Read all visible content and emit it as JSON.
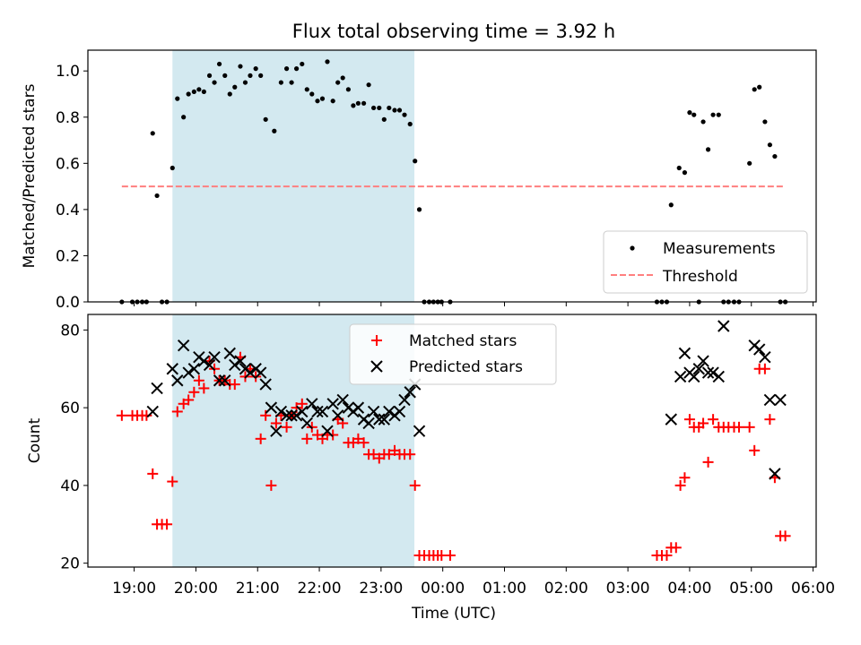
{
  "title": "Flux total observing time = 3.92 h",
  "chart_data": [
    {
      "type": "scatter",
      "ylabel": "Matched/Predicted stars",
      "xlabel": "",
      "xlim_hours": [
        18.25,
        30.05
      ],
      "ylim": [
        0,
        1.09
      ],
      "yticks": [
        0.0,
        0.2,
        0.4,
        0.6,
        0.8,
        1.0
      ],
      "ytick_labels": [
        "0.0",
        "0.2",
        "0.4",
        "0.6",
        "0.8",
        "1.0"
      ],
      "shaded_interval_hours": [
        19.62,
        23.54
      ],
      "shade_color": "#d3e9f0",
      "threshold": {
        "y": 0.5,
        "x_range_hours": [
          18.8,
          29.55
        ],
        "label": "Threshold",
        "color": "#ff7f7f"
      },
      "legend": {
        "placement": "lower-right",
        "entries": [
          "Measurements",
          "Threshold"
        ]
      },
      "series": [
        {
          "name": "Measurements",
          "marker": "dot",
          "color": "#000000",
          "x": [
            18.8,
            18.97,
            19.05,
            19.13,
            19.2,
            19.3,
            19.37,
            19.45,
            19.53,
            19.62,
            19.7,
            19.8,
            19.88,
            19.97,
            20.05,
            20.13,
            20.22,
            20.3,
            20.38,
            20.47,
            20.55,
            20.63,
            20.72,
            20.8,
            20.88,
            20.97,
            21.05,
            21.13,
            21.27,
            21.38,
            21.47,
            21.55,
            21.63,
            21.72,
            21.8,
            21.88,
            21.97,
            22.05,
            22.13,
            22.22,
            22.3,
            22.38,
            22.47,
            22.55,
            22.63,
            22.72,
            22.8,
            22.88,
            22.97,
            23.05,
            23.13,
            23.22,
            23.3,
            23.38,
            23.47,
            23.55,
            23.62,
            23.7,
            23.78,
            23.85,
            23.92,
            23.98,
            24.12,
            27.47,
            27.55,
            27.63,
            27.7,
            27.83,
            27.92,
            28.0,
            28.07,
            28.15,
            28.22,
            28.3,
            28.38,
            28.47,
            28.55,
            28.63,
            28.72,
            28.8,
            28.97,
            29.05,
            29.13,
            29.22,
            29.3,
            29.38,
            29.47,
            29.55
          ],
          "y": [
            0,
            0,
            0,
            0,
            0,
            0.73,
            0.46,
            0,
            0,
            0.58,
            0.88,
            0.8,
            0.9,
            0.91,
            0.92,
            0.91,
            0.98,
            0.95,
            1.03,
            0.98,
            0.9,
            0.93,
            1.02,
            0.95,
            0.98,
            1.01,
            0.98,
            0.79,
            0.74,
            0.95,
            1.01,
            0.95,
            1.01,
            1.03,
            0.92,
            0.9,
            0.87,
            0.88,
            1.04,
            0.87,
            0.95,
            0.97,
            0.92,
            0.85,
            0.86,
            0.86,
            0.94,
            0.84,
            0.84,
            0.79,
            0.84,
            0.83,
            0.83,
            0.81,
            0.77,
            0.61,
            0.4,
            0,
            0,
            0,
            0,
            0,
            0,
            0,
            0,
            0,
            0.42,
            0.58,
            0.56,
            0.82,
            0.81,
            0,
            0.78,
            0.66,
            0.81,
            0.81,
            0,
            0,
            0,
            0,
            0.6,
            0.92,
            0.93,
            0.78,
            0.68,
            0.63,
            0,
            0
          ]
        }
      ]
    },
    {
      "type": "scatter",
      "ylabel": "Count",
      "xlabel": "Time (UTC)",
      "xlim_hours": [
        18.25,
        30.05
      ],
      "ylim": [
        19,
        84
      ],
      "yticks": [
        20,
        40,
        60,
        80
      ],
      "ytick_labels": [
        "20",
        "40",
        "60",
        "80"
      ],
      "xticks_hours": [
        19,
        20,
        21,
        22,
        23,
        24,
        25,
        26,
        27,
        28,
        29,
        30
      ],
      "xtick_labels": [
        "19:00",
        "20:00",
        "21:00",
        "22:00",
        "23:00",
        "00:00",
        "01:00",
        "02:00",
        "03:00",
        "04:00",
        "05:00",
        "06:00"
      ],
      "shaded_interval_hours": [
        19.62,
        23.54
      ],
      "shade_color": "#d3e9f0",
      "legend": {
        "placement": "top-center",
        "entries": [
          "Matched stars",
          "Predicted stars"
        ]
      },
      "series": [
        {
          "name": "Matched stars",
          "marker": "plus",
          "color": "#ff0000",
          "x": [
            18.8,
            18.97,
            19.05,
            19.13,
            19.2,
            19.3,
            19.37,
            19.45,
            19.53,
            19.62,
            19.7,
            19.8,
            19.88,
            19.97,
            20.05,
            20.13,
            20.22,
            20.3,
            20.38,
            20.47,
            20.55,
            20.63,
            20.72,
            20.8,
            20.88,
            20.97,
            21.05,
            21.13,
            21.22,
            21.3,
            21.38,
            21.47,
            21.55,
            21.63,
            21.72,
            21.8,
            21.88,
            21.97,
            22.05,
            22.13,
            22.22,
            22.3,
            22.38,
            22.47,
            22.55,
            22.63,
            22.72,
            22.8,
            22.88,
            22.97,
            23.05,
            23.13,
            23.22,
            23.3,
            23.38,
            23.47,
            23.55,
            23.62,
            23.7,
            23.78,
            23.85,
            23.92,
            23.98,
            24.12,
            27.47,
            27.55,
            27.63,
            27.7,
            27.78,
            27.85,
            27.92,
            28.0,
            28.07,
            28.15,
            28.22,
            28.3,
            28.38,
            28.47,
            28.55,
            28.63,
            28.72,
            28.8,
            28.97,
            29.05,
            29.13,
            29.22,
            29.3,
            29.38,
            29.47,
            29.55
          ],
          "y": [
            58,
            58,
            58,
            58,
            58,
            43,
            30,
            30,
            30,
            41,
            59,
            61,
            62,
            64,
            67,
            65,
            72,
            70,
            67,
            67,
            66,
            66,
            73,
            68,
            70,
            68,
            52,
            58,
            40,
            56,
            58,
            55,
            58,
            60,
            61,
            52,
            55,
            53,
            52,
            53,
            53,
            57,
            56,
            51,
            51,
            52,
            51,
            48,
            48,
            47,
            48,
            48,
            49,
            48,
            48,
            48,
            40,
            22,
            22,
            22,
            22,
            22,
            22,
            22,
            22,
            22,
            22,
            24,
            24,
            40,
            42,
            57,
            55,
            55,
            56,
            46,
            57,
            55,
            55,
            55,
            55,
            55,
            55,
            49,
            70,
            70,
            57,
            42,
            27,
            27
          ]
        },
        {
          "name": "Predicted stars",
          "marker": "x",
          "color": "#000000",
          "x": [
            19.3,
            19.37,
            19.62,
            19.7,
            19.8,
            19.88,
            19.97,
            20.05,
            20.13,
            20.22,
            20.3,
            20.38,
            20.47,
            20.55,
            20.63,
            20.72,
            20.8,
            20.88,
            20.97,
            21.05,
            21.13,
            21.22,
            21.3,
            21.38,
            21.47,
            21.55,
            21.63,
            21.72,
            21.8,
            21.88,
            21.97,
            22.05,
            22.13,
            22.22,
            22.3,
            22.38,
            22.47,
            22.55,
            22.63,
            22.72,
            22.8,
            22.88,
            22.97,
            23.05,
            23.13,
            23.22,
            23.3,
            23.38,
            23.47,
            23.55,
            23.62,
            27.7,
            27.85,
            27.92,
            28.0,
            28.07,
            28.15,
            28.22,
            28.3,
            28.38,
            28.47,
            28.55,
            29.05,
            29.13,
            29.22,
            29.3,
            29.38,
            29.47
          ],
          "y": [
            59,
            65,
            70,
            67,
            76,
            69,
            70,
            73,
            72,
            71,
            73,
            67,
            67,
            74,
            71,
            72,
            70,
            69,
            70,
            69,
            66,
            60,
            54,
            59,
            58,
            58,
            58,
            59,
            56,
            61,
            59,
            59,
            54,
            61,
            58,
            62,
            60,
            59,
            60,
            57,
            56,
            59,
            57,
            57,
            59,
            58,
            59,
            62,
            64,
            66,
            54,
            57,
            68,
            74,
            69,
            68,
            70,
            72,
            69,
            69,
            68,
            81,
            76,
            75,
            73,
            62,
            43,
            62
          ]
        }
      ]
    }
  ]
}
